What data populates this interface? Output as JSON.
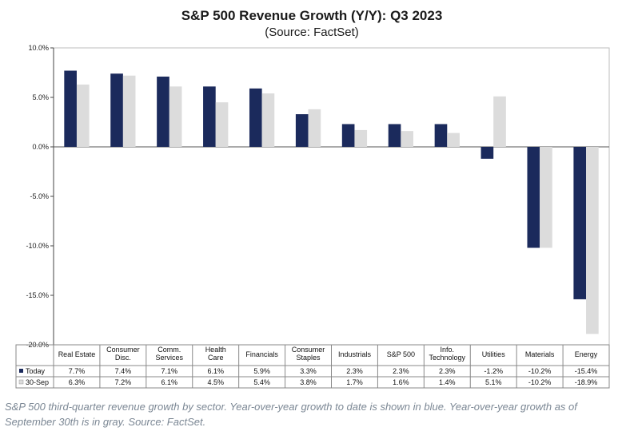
{
  "chart_data": {
    "type": "bar",
    "title": "S&P 500 Revenue Growth (Y/Y): Q3 2023",
    "subtitle": "(Source: FactSet)",
    "categories": [
      [
        "Real Estate"
      ],
      [
        "Consumer",
        "Disc."
      ],
      [
        "Comm.",
        "Services"
      ],
      [
        "Health",
        "Care"
      ],
      [
        "Financials"
      ],
      [
        "Consumer",
        "Staples"
      ],
      [
        "Industrials"
      ],
      [
        "S&P 500"
      ],
      [
        "Info.",
        "Technology"
      ],
      [
        "Utilities"
      ],
      [
        "Materials"
      ],
      [
        "Energy"
      ]
    ],
    "series": [
      {
        "name": "Today",
        "color": "#1b2a5c",
        "values": [
          7.7,
          7.4,
          7.1,
          6.1,
          5.9,
          3.3,
          2.3,
          2.3,
          2.3,
          -1.2,
          -10.2,
          -15.4
        ],
        "labels": [
          "7.7%",
          "7.4%",
          "7.1%",
          "6.1%",
          "5.9%",
          "3.3%",
          "2.3%",
          "2.3%",
          "2.3%",
          "-1.2%",
          "-10.2%",
          "-15.4%"
        ]
      },
      {
        "name": "30-Sep",
        "color": "#dcdcdc",
        "values": [
          6.3,
          7.2,
          6.1,
          4.5,
          5.4,
          3.8,
          1.7,
          1.6,
          1.4,
          5.1,
          -10.2,
          -18.9
        ],
        "labels": [
          "6.3%",
          "7.2%",
          "6.1%",
          "4.5%",
          "5.4%",
          "3.8%",
          "1.7%",
          "1.6%",
          "1.4%",
          "5.1%",
          "-10.2%",
          "-18.9%"
        ]
      }
    ],
    "ylim": [
      -20,
      10
    ],
    "yticks": [
      10,
      5,
      0,
      -5,
      -10,
      -15,
      -20
    ],
    "ytick_labels": [
      "10.0%",
      "5.0%",
      "0.0%",
      "-5.0%",
      "-10.0%",
      "-15.0%",
      "-20.0%"
    ],
    "grid": false,
    "legend": "data-table"
  },
  "caption": "S&P 500 third-quarter revenue growth by sector. Year-over-year growth to date is shown in blue. Year-over-year growth as of September 30th is in gray. Source: FactSet."
}
